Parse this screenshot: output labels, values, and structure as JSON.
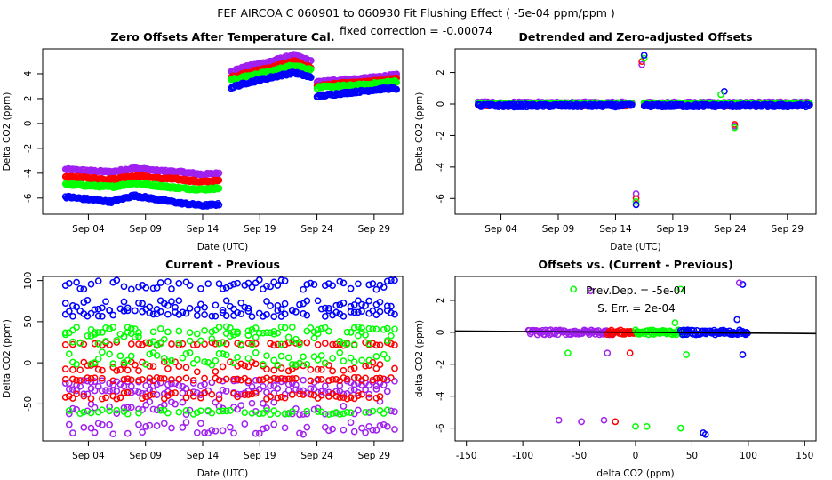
{
  "header": {
    "title": "FEF   AIRCOA C   060901 to 060930   Fit Flushing Effect ( -5e-04 ppm/ppm )",
    "subtitle": "fixed correction = -0.00074"
  },
  "colors": {
    "red": "#ff0000",
    "green": "#00ff00",
    "blue": "#0000ff",
    "purple": "#a020f0",
    "axis": "#000000"
  },
  "chart_data": [
    {
      "id": "zero-offsets",
      "type": "scatter",
      "title": "Zero Offsets After Temperature Cal.",
      "xlabel": "Date (UTC)",
      "ylabel": "Delta CO2 (ppm)",
      "xlim": [
        -1,
        30.5
      ],
      "ylim": [
        -7.3,
        6
      ],
      "x_ticks": [
        3,
        8,
        13,
        18,
        23,
        28
      ],
      "x_tick_labels": [
        "Sep 04",
        "Sep 09",
        "Sep 14",
        "Sep 19",
        "Sep 24",
        "Sep 29"
      ],
      "y_ticks": [
        -6,
        -4,
        -2,
        0,
        2,
        4
      ],
      "y_tick_labels": [
        "-6",
        "-4",
        "-2",
        "0",
        "2",
        "4"
      ],
      "series": [
        {
          "name": "purple",
          "segments": [
            {
              "x": [
                1,
                3,
                5,
                7,
                9,
                11,
                13,
                14.5
              ],
              "y": [
                -3.7,
                -3.8,
                -3.9,
                -3.6,
                -3.8,
                -3.9,
                -4.1,
                -4.0
              ]
            },
            {
              "x": [
                15.5,
                17,
                19,
                21,
                22.5
              ],
              "y": [
                4.2,
                4.6,
                5.0,
                5.5,
                5.0
              ]
            },
            {
              "x": [
                23,
                25,
                27,
                29,
                30
              ],
              "y": [
                3.3,
                3.5,
                3.6,
                3.8,
                3.9
              ]
            }
          ]
        },
        {
          "name": "red",
          "segments": [
            {
              "x": [
                1,
                3,
                5,
                7,
                9,
                11,
                13,
                14.5
              ],
              "y": [
                -4.3,
                -4.4,
                -4.5,
                -4.2,
                -4.4,
                -4.5,
                -4.7,
                -4.6
              ]
            },
            {
              "x": [
                15.5,
                17,
                19,
                21,
                22.5
              ],
              "y": [
                3.7,
                4.1,
                4.5,
                5.0,
                4.5
              ]
            },
            {
              "x": [
                23,
                25,
                27,
                29,
                30
              ],
              "y": [
                3.0,
                3.2,
                3.3,
                3.5,
                3.6
              ]
            }
          ]
        },
        {
          "name": "green",
          "segments": [
            {
              "x": [
                1,
                3,
                5,
                7,
                9,
                11,
                13,
                14.5
              ],
              "y": [
                -4.9,
                -5.0,
                -5.1,
                -4.8,
                -5.0,
                -5.2,
                -5.3,
                -5.2
              ]
            },
            {
              "x": [
                15.5,
                17,
                19,
                21,
                22.5
              ],
              "y": [
                3.5,
                3.8,
                4.2,
                4.7,
                4.3
              ]
            },
            {
              "x": [
                23,
                25,
                27,
                29,
                30
              ],
              "y": [
                2.9,
                3.0,
                3.1,
                3.3,
                3.4
              ]
            }
          ]
        },
        {
          "name": "blue",
          "segments": [
            {
              "x": [
                1,
                3,
                5,
                7,
                9,
                11,
                13,
                14.5
              ],
              "y": [
                -5.9,
                -6.1,
                -6.3,
                -5.8,
                -6.1,
                -6.4,
                -6.6,
                -6.5
              ]
            },
            {
              "x": [
                15.5,
                17,
                19,
                21,
                22.5
              ],
              "y": [
                2.9,
                3.3,
                3.7,
                4.1,
                3.7
              ]
            },
            {
              "x": [
                23,
                25,
                27,
                29,
                30
              ],
              "y": [
                2.2,
                2.4,
                2.6,
                2.8,
                2.8
              ]
            }
          ]
        }
      ]
    },
    {
      "id": "detrended",
      "type": "scatter",
      "title": "Detrended and Zero-adjusted Offsets",
      "xlabel": "Date (UTC)",
      "ylabel": "Delta CO2 (ppm)",
      "xlim": [
        -1,
        30.5
      ],
      "ylim": [
        -7,
        3.5
      ],
      "x_ticks": [
        3,
        8,
        13,
        18,
        23,
        28
      ],
      "x_tick_labels": [
        "Sep 04",
        "Sep 09",
        "Sep 14",
        "Sep 19",
        "Sep 24",
        "Sep 29"
      ],
      "y_ticks": [
        -6,
        -4,
        -2,
        0,
        2
      ],
      "y_tick_labels": [
        "-6",
        "-4",
        "-2",
        "0",
        "2"
      ],
      "series": [
        {
          "name": "purple",
          "segments": [
            {
              "x": [
                1,
                14.5
              ],
              "y": [
                0.05,
                0.05
              ]
            },
            {
              "x": [
                15.5,
                30
              ],
              "y": [
                0.05,
                0.05
              ]
            }
          ]
        },
        {
          "name": "red",
          "segments": [
            {
              "x": [
                1,
                14.5
              ],
              "y": [
                -0.05,
                -0.05
              ]
            },
            {
              "x": [
                15.5,
                30
              ],
              "y": [
                -0.05,
                -0.05
              ]
            }
          ]
        },
        {
          "name": "green",
          "segments": [
            {
              "x": [
                1,
                14.5
              ],
              "y": [
                0.0,
                0.0
              ]
            },
            {
              "x": [
                15.5,
                30
              ],
              "y": [
                0.0,
                0.0
              ]
            }
          ]
        },
        {
          "name": "blue",
          "segments": [
            {
              "x": [
                1,
                14.5
              ],
              "y": [
                -0.1,
                -0.1
              ]
            },
            {
              "x": [
                15.5,
                30
              ],
              "y": [
                -0.1,
                -0.1
              ]
            }
          ]
        }
      ],
      "outliers": [
        {
          "series": "purple",
          "x": 14.8,
          "y": -5.7
        },
        {
          "series": "red",
          "x": 14.8,
          "y": -6.0
        },
        {
          "series": "green",
          "x": 14.8,
          "y": -6.2
        },
        {
          "series": "blue",
          "x": 14.8,
          "y": -6.4
        },
        {
          "series": "purple",
          "x": 15.3,
          "y": 2.5
        },
        {
          "series": "red",
          "x": 15.3,
          "y": 2.7
        },
        {
          "series": "green",
          "x": 15.5,
          "y": 2.9
        },
        {
          "series": "blue",
          "x": 15.5,
          "y": 3.1
        },
        {
          "series": "blue",
          "x": 22.5,
          "y": 0.8
        },
        {
          "series": "green",
          "x": 22.2,
          "y": 0.6
        },
        {
          "series": "purple",
          "x": 23.4,
          "y": -1.4
        },
        {
          "series": "red",
          "x": 23.4,
          "y": -1.3
        },
        {
          "series": "green",
          "x": 23.4,
          "y": -1.5
        }
      ]
    },
    {
      "id": "current-previous",
      "type": "scatter",
      "title": "Current - Previous",
      "xlabel": "Date (UTC)",
      "ylabel": "Delta CO2 (ppm)",
      "xlim": [
        -1,
        30.5
      ],
      "ylim": [
        -95,
        105
      ],
      "x_ticks": [
        3,
        8,
        13,
        18,
        23,
        28
      ],
      "x_tick_labels": [
        "Sep 04",
        "Sep 09",
        "Sep 14",
        "Sep 19",
        "Sep 24",
        "Sep 29"
      ],
      "y_ticks": [
        -50,
        0,
        50,
        100
      ],
      "y_tick_labels": [
        "-50",
        "0",
        "50",
        "100"
      ],
      "series": [
        {
          "name": "blue",
          "bands": [
            {
              "y": 95,
              "spread": 6
            },
            {
              "y": 60,
              "spread": 4
            },
            {
              "y": 70,
              "spread": 6
            }
          ]
        },
        {
          "name": "green",
          "bands": [
            {
              "y": 40,
              "spread": 4
            },
            {
              "y": 30,
              "spread": 8
            },
            {
              "y": 5,
              "spread": 8
            },
            {
              "y": -60,
              "spread": 3
            }
          ]
        },
        {
          "name": "red",
          "bands": [
            {
              "y": 23,
              "spread": 2
            },
            {
              "y": -5,
              "spread": 6
            },
            {
              "y": -20,
              "spread": 2
            },
            {
              "y": -40,
              "spread": 4
            }
          ]
        },
        {
          "name": "purple",
          "bands": [
            {
              "y": -25,
              "spread": 4
            },
            {
              "y": -35,
              "spread": 4
            },
            {
              "y": -55,
              "spread": 8
            },
            {
              "y": -80,
              "spread": 8
            }
          ]
        }
      ]
    },
    {
      "id": "offsets-vs-diff",
      "type": "scatter",
      "title": "Offsets vs. (Current - Previous)",
      "xlabel": "delta CO2 (ppm)",
      "ylabel": "delta CO2 (ppm)",
      "xlim": [
        -160,
        160
      ],
      "ylim": [
        -6.8,
        3.5
      ],
      "x_ticks": [
        -150,
        -100,
        -50,
        0,
        50,
        100,
        150
      ],
      "x_tick_labels": [
        "-150",
        "-100",
        "-50",
        "0",
        "50",
        "100",
        "150"
      ],
      "y_ticks": [
        -6,
        -4,
        -2,
        0,
        2
      ],
      "y_tick_labels": [
        "-6",
        "-4",
        "-2",
        "0",
        "2"
      ],
      "annotations": {
        "prev_dep": "Prev.Dep. =  -5e-04",
        "std_err": "S. Err. =  2e-04"
      },
      "fit_line": {
        "slope": -0.0005,
        "intercept": 0.0
      },
      "series": [
        {
          "name": "purple",
          "x_range": [
            -95,
            -20
          ],
          "y_center": 0.0,
          "y_spread": 0.15
        },
        {
          "name": "red",
          "x_range": [
            -25,
            0
          ],
          "y_center": 0.0,
          "y_spread": 0.15
        },
        {
          "name": "green",
          "x_range": [
            0,
            45
          ],
          "y_center": 0.0,
          "y_spread": 0.15
        },
        {
          "name": "blue",
          "x_range": [
            40,
            100
          ],
          "y_center": 0.0,
          "y_spread": 0.15
        }
      ],
      "outliers": [
        {
          "series": "purple",
          "x": -68,
          "y": -5.5
        },
        {
          "series": "purple",
          "x": -48,
          "y": -5.6
        },
        {
          "series": "purple",
          "x": -28,
          "y": -5.5
        },
        {
          "series": "red",
          "x": -18,
          "y": -5.6
        },
        {
          "series": "green",
          "x": 0,
          "y": -5.9
        },
        {
          "series": "green",
          "x": 10,
          "y": -5.9
        },
        {
          "series": "green",
          "x": 40,
          "y": -6.0
        },
        {
          "series": "blue",
          "x": 60,
          "y": -6.3
        },
        {
          "series": "blue",
          "x": 62,
          "y": -6.4
        },
        {
          "series": "purple",
          "x": -40,
          "y": 2.6
        },
        {
          "series": "green",
          "x": -55,
          "y": 2.7
        },
        {
          "series": "green",
          "x": 40,
          "y": 2.7
        },
        {
          "series": "blue",
          "x": 95,
          "y": 3.0
        },
        {
          "series": "purple",
          "x": 92,
          "y": 3.1
        },
        {
          "series": "green",
          "x": -60,
          "y": -1.3
        },
        {
          "series": "purple",
          "x": -25,
          "y": -1.3
        },
        {
          "series": "red",
          "x": -5,
          "y": -1.3
        },
        {
          "series": "green",
          "x": 45,
          "y": -1.4
        },
        {
          "series": "blue",
          "x": 95,
          "y": -1.4
        },
        {
          "series": "blue",
          "x": 90,
          "y": 0.8
        },
        {
          "series": "green",
          "x": 35,
          "y": 0.6
        }
      ]
    }
  ]
}
